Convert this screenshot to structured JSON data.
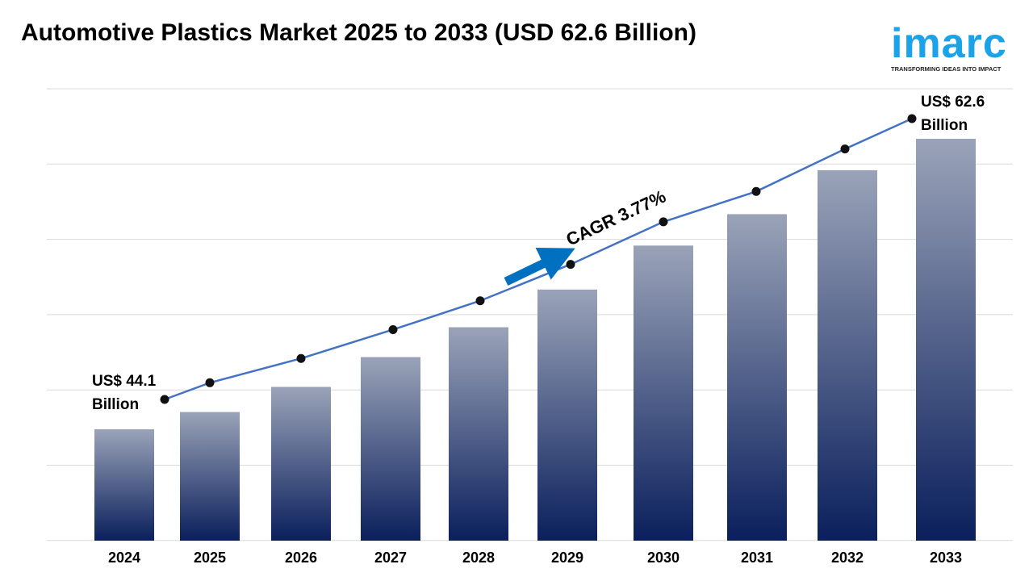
{
  "header": {
    "title": "Automotive Plastics Market 2025 to 2033 (USD 62.6 Billion)"
  },
  "logo": {
    "text": "imarc",
    "tagline": "TRANSFORMING IDEAS INTO IMPACT",
    "color": "#1aa3e8"
  },
  "chart_data": {
    "type": "bar",
    "title": "Automotive Plastics Market 2025 to 2033 (USD 62.6 Billion)",
    "categories": [
      "2024",
      "2025",
      "2026",
      "2027",
      "2028",
      "2029",
      "2030",
      "2031",
      "2032",
      "2033"
    ],
    "values": [
      44.1,
      45.2,
      46.8,
      48.7,
      50.6,
      53.0,
      55.8,
      57.8,
      60.6,
      62.6
    ],
    "overlay_line": true,
    "grid": true,
    "annotations": {
      "start": [
        "US$ 44.1",
        "Billion"
      ],
      "end": [
        "US$ 62.6",
        "Billion"
      ],
      "cagr": "CAGR 3.77%"
    },
    "colors": {
      "bar_top": "#9aa3b8",
      "bar_bottom": "#0a1f5c",
      "line": "#4472c4",
      "arrow": "#0070c0"
    }
  }
}
